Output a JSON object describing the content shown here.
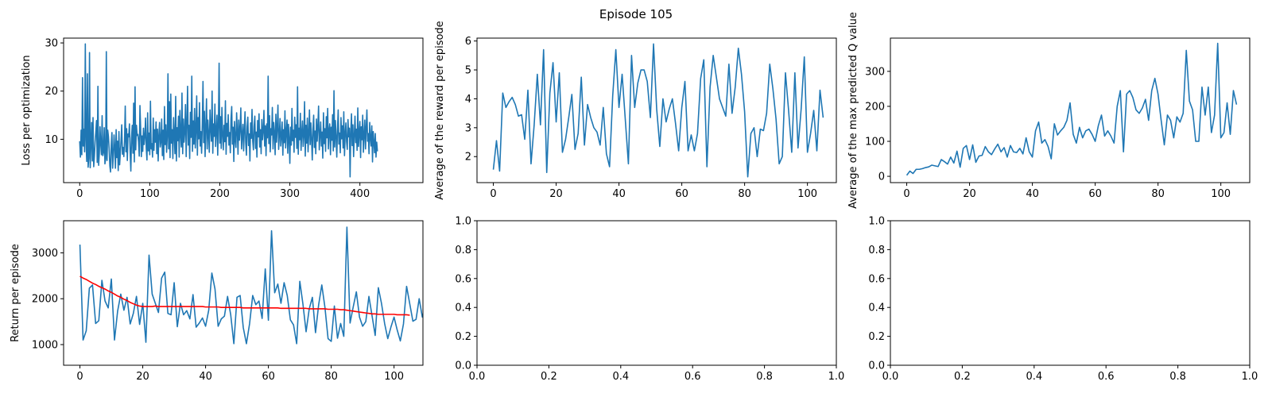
{
  "figure": {
    "title": "Episode 105"
  },
  "chart_data": [
    {
      "type": "line",
      "id": "loss",
      "ylabel": "Loss per optimization",
      "xlim": [
        -23,
        490
      ],
      "ylim": [
        1,
        31
      ],
      "xticks": [
        0,
        100,
        200,
        300,
        400
      ],
      "yticks": [
        10,
        20,
        30
      ],
      "series": [
        {
          "color": "#1f77b4",
          "values": [
            9.6,
            6.3,
            11.9,
            6.8,
            22.8,
            8.6,
            12.1,
            7.4,
            29.8,
            9.9,
            5.4,
            23.6,
            4.2,
            6.1,
            28.0,
            4.1,
            8.9,
            13.5,
            5.5,
            14.5,
            4.3,
            6.6,
            9.5,
            11.5,
            13.9,
            5.2,
            21.0,
            4.6,
            7.1,
            12.6,
            9.0,
            6.8,
            14.9,
            6.6,
            7.3,
            12.4,
            4.9,
            6.0,
            28.2,
            5.6,
            11.9,
            10.6,
            8.1,
            4.5,
            3.2,
            8.7,
            11.4,
            4.0,
            6.6,
            10.9,
            8.3,
            4.0,
            12.0,
            6.2,
            9.6,
            3.5,
            11.6,
            4.7,
            7.2,
            9.7,
            13.0,
            6.9,
            8.3,
            6.4,
            9.6,
            16.9,
            7.4,
            12.2,
            5.6,
            11.1,
            10.5,
            13.2,
            7.3,
            3.4,
            10.4,
            12.9,
            7.1,
            17.5,
            5.3,
            20.9,
            7.8,
            12.9,
            10.8,
            11.0,
            9.5,
            6.5,
            17.0,
            12.2,
            6.4,
            10.7,
            7.5,
            12.3,
            8.9,
            10.6,
            14.4,
            8.2,
            5.7,
            15.5,
            7.6,
            11.3,
            6.8,
            17.9,
            8.0,
            9.1,
            6.3,
            14.4,
            7.7,
            12.0,
            9.4,
            13.6,
            7.0,
            12.1,
            5.5,
            10.8,
            13.5,
            8.4,
            9.5,
            14.2,
            6.6,
            11.9,
            5.8,
            16.8,
            8.9,
            13.0,
            7.3,
            10.5,
            23.6,
            8.0,
            17.8,
            6.2,
            19.4,
            9.2,
            12.0,
            6.0,
            14.5,
            10.8,
            7.0,
            18.9,
            5.5,
            12.4,
            9.7,
            14.8,
            6.3,
            16.0,
            11.0,
            8.4,
            19.6,
            7.0,
            14.2,
            9.4,
            11.6,
            17.2,
            6.4,
            13.3,
            21.0,
            8.8,
            12.9,
            6.0,
            15.6,
            10.4,
            23.1,
            7.5,
            13.8,
            9.0,
            16.4,
            8.2,
            12.1,
            19.0,
            6.7,
            14.5,
            10.1,
            17.6,
            8.6,
            11.6,
            7.1,
            13.0,
            22.0,
            9.3,
            15.8,
            6.4,
            12.5,
            18.4,
            8.0,
            14.0,
            10.9,
            7.3,
            16.1,
            12.3,
            9.6,
            20.0,
            7.1,
            13.2,
            10.6,
            17.3,
            8.5,
            11.8,
            15.0,
            6.7,
            12.7,
            25.8,
            9.2,
            14.7,
            8.1,
            16.6,
            11.1,
            7.8,
            12.9,
            9.5,
            18.0,
            6.9,
            13.3,
            10.6,
            15.1,
            8.8,
            11.4,
            7.2,
            14.2,
            16.8,
            9.0,
            12.5,
            5.4,
            13.7,
            10.0,
            8.3,
            15.5,
            11.7,
            6.9,
            14.0,
            9.8,
            12.1,
            16.5,
            8.0,
            10.7,
            13.1,
            7.6,
            11.9,
            15.7,
            9.3,
            6.7,
            12.6,
            14.6,
            8.7,
            11.1,
            5.5,
            13.4,
            10.2,
            16.2,
            9.6,
            7.8,
            12.7,
            14.8,
            8.1,
            11.5,
            6.3,
            13.9,
            10.5,
            15.3,
            8.4,
            12.0,
            7.0,
            14.1,
            9.9,
            11.7,
            16.0,
            8.6,
            12.8,
            6.6,
            13.2,
            10.3,
            23.1,
            9.1,
            14.9,
            7.4,
            12.2,
            10.9,
            16.6,
            8.0,
            13.5,
            11.3,
            6.8,
            15.2,
            9.4,
            12.4,
            17.1,
            7.9,
            11.0,
            14.3,
            8.6,
            10.6,
            13.6,
            6.7,
            12.0,
            9.3,
            15.9,
            8.2,
            11.6,
            14.0,
            7.1,
            13.1,
            10.1,
            5.0,
            12.5,
            8.8,
            16.4,
            9.7,
            11.9,
            7.3,
            14.6,
            10.4,
            13.0,
            8.1,
            20.9,
            6.9,
            12.3,
            9.9,
            15.4,
            7.7,
            11.4,
            13.8,
            8.5,
            10.8,
            17.8,
            6.5,
            12.9,
            9.2,
            14.4,
            7.4,
            11.2,
            16.1,
            8.9,
            13.4,
            10.0,
            5.7,
            12.1,
            15.0,
            8.3,
            11.7,
            7.0,
            14.2,
            9.6,
            12.6,
            16.9,
            7.8,
            10.9,
            13.6,
            8.6,
            11.5,
            6.1,
            15.5,
            9.1,
            12.2,
            7.5,
            14.7,
            10.3,
            16.4,
            8.0,
            11.8,
            13.2,
            6.8,
            12.5,
            9.8,
            15.1,
            7.6,
            20.1,
            8.4,
            13.9,
            10.7,
            6.3,
            12.0,
            16.1,
            9.0,
            11.3,
            7.2,
            14.5,
            10.1,
            12.8,
            8.2,
            15.7,
            6.6,
            11.0,
            13.4,
            9.5,
            7.9,
            14.1,
            10.5,
            12.3,
            2.2,
            11.6,
            15.3,
            8.7,
            13.0,
            6.4,
            10.8,
            14.8,
            9.3,
            12.1,
            7.7,
            16.5,
            8.5,
            11.4,
            13.7,
            6.2,
            12.6,
            9.9,
            15.0,
            7.3,
            10.9,
            14.0,
            8.0,
            12.4,
            16.1,
            9.6,
            11.2,
            7.0,
            13.5,
            10.2,
            8.6,
            12.8,
            5.3,
            11.6,
            9.5,
            7.2,
            11.2,
            6.3,
            9.4,
            7.5
          ]
        }
      ]
    },
    {
      "type": "line",
      "id": "reward",
      "ylabel": "Average of the reward per episode",
      "xlim": [
        -5.2,
        109.2
      ],
      "ylim": [
        1.1,
        6.1
      ],
      "xticks": [
        0,
        20,
        40,
        60,
        80,
        100
      ],
      "yticks": [
        2,
        3,
        4,
        5,
        6
      ],
      "series": [
        {
          "color": "#1f77b4",
          "values": [
            1.55,
            2.55,
            1.5,
            4.2,
            3.7,
            3.9,
            4.05,
            3.8,
            3.4,
            3.45,
            2.6,
            4.3,
            1.75,
            3.1,
            4.85,
            3.1,
            5.7,
            1.45,
            4.2,
            5.25,
            3.2,
            4.9,
            2.15,
            2.6,
            3.35,
            4.15,
            2.25,
            2.8,
            4.75,
            2.4,
            3.8,
            3.35,
            3.0,
            2.85,
            2.4,
            3.7,
            2.1,
            1.65,
            4.1,
            5.7,
            3.7,
            4.85,
            3.3,
            1.75,
            5.5,
            3.7,
            4.55,
            5.0,
            5.0,
            4.6,
            3.35,
            5.9,
            3.65,
            2.35,
            4.0,
            3.2,
            3.65,
            4.0,
            3.15,
            2.2,
            3.7,
            4.6,
            2.2,
            2.75,
            2.2,
            2.8,
            4.7,
            5.35,
            1.65,
            4.4,
            5.5,
            4.75,
            4.0,
            3.7,
            3.4,
            5.2,
            3.5,
            4.4,
            5.75,
            4.85,
            3.55,
            1.3,
            2.8,
            3.0,
            2.0,
            2.95,
            2.9,
            3.5,
            5.2,
            4.35,
            3.3,
            1.75,
            2.0,
            4.9,
            3.6,
            2.15,
            4.9,
            2.3,
            3.65,
            5.45,
            2.15,
            2.8,
            3.6,
            2.2,
            4.3,
            3.35
          ]
        }
      ]
    },
    {
      "type": "line",
      "id": "maxq",
      "ylabel": "Average of the max predicted Q value",
      "xlim": [
        -5.2,
        109.2
      ],
      "ylim": [
        -18,
        395
      ],
      "xticks": [
        0,
        20,
        40,
        60,
        80,
        100
      ],
      "yticks": [
        0,
        100,
        200,
        300
      ],
      "series": [
        {
          "color": "#1f77b4",
          "values": [
            3,
            15,
            8,
            20,
            20,
            22,
            25,
            27,
            32,
            30,
            28,
            48,
            42,
            35,
            55,
            38,
            72,
            26,
            80,
            88,
            48,
            90,
            40,
            58,
            60,
            85,
            70,
            62,
            78,
            92,
            70,
            82,
            55,
            88,
            70,
            68,
            80,
            64,
            110,
            70,
            55,
            130,
            155,
            95,
            105,
            85,
            50,
            150,
            118,
            130,
            140,
            160,
            210,
            120,
            95,
            140,
            110,
            130,
            135,
            120,
            100,
            145,
            175,
            115,
            130,
            115,
            95,
            200,
            245,
            70,
            235,
            245,
            225,
            190,
            180,
            195,
            220,
            160,
            245,
            280,
            235,
            160,
            90,
            175,
            160,
            110,
            170,
            155,
            180,
            360,
            215,
            190,
            100,
            100,
            255,
            175,
            255,
            125,
            175,
            380,
            110,
            125,
            210,
            120,
            245,
            205
          ]
        }
      ]
    },
    {
      "type": "line",
      "id": "return",
      "ylabel": "Return per episode",
      "xlim": [
        -5.2,
        109.2
      ],
      "ylim": [
        550,
        3700
      ],
      "xticks": [
        0,
        20,
        40,
        60,
        80,
        100
      ],
      "yticks": [
        1000,
        2000,
        3000
      ],
      "series": [
        {
          "color": "#1f77b4",
          "values": [
            3180,
            1100,
            1300,
            2230,
            2300,
            1460,
            1520,
            2400,
            1950,
            1800,
            2430,
            1100,
            1730,
            2100,
            1750,
            2030,
            1450,
            1680,
            2050,
            1440,
            1900,
            1050,
            2950,
            2100,
            1900,
            1700,
            2450,
            2580,
            1680,
            1650,
            2350,
            1390,
            1900,
            1650,
            1740,
            1560,
            2090,
            1380,
            1470,
            1580,
            1400,
            1750,
            2560,
            2210,
            1400,
            1560,
            1620,
            2050,
            1650,
            1020,
            2030,
            2070,
            1370,
            1020,
            1450,
            2070,
            1870,
            1950,
            1570,
            2650,
            1530,
            3480,
            2130,
            2320,
            1900,
            2350,
            2070,
            1540,
            1430,
            1020,
            2380,
            1880,
            1280,
            1780,
            2030,
            1260,
            1870,
            2300,
            1810,
            1130,
            1070,
            1840,
            1140,
            1460,
            1180,
            3560,
            1470,
            1820,
            2150,
            1600,
            1400,
            1500,
            2050,
            1630,
            1200,
            2240,
            1900,
            1460,
            1130,
            1380,
            1600,
            1320,
            1080,
            1450,
            2270,
            1890,
            1510,
            1550,
            2000,
            1600,
            1880,
            1650
          ]
        },
        {
          "color": "#ff0000",
          "values": [
            2490,
            2450,
            2420,
            2380,
            2340,
            2310,
            2270,
            2240,
            2210,
            2170,
            2140,
            2100,
            2060,
            2030,
            1990,
            1960,
            1920,
            1890,
            1860,
            1840,
            1830,
            1830,
            1830,
            1830,
            1840,
            1830,
            1830,
            1830,
            1830,
            1830,
            1830,
            1830,
            1830,
            1830,
            1830,
            1830,
            1830,
            1830,
            1830,
            1830,
            1820,
            1820,
            1820,
            1820,
            1820,
            1810,
            1810,
            1810,
            1810,
            1810,
            1810,
            1810,
            1800,
            1800,
            1800,
            1800,
            1800,
            1800,
            1800,
            1800,
            1800,
            1800,
            1800,
            1800,
            1790,
            1790,
            1790,
            1790,
            1790,
            1790,
            1790,
            1790,
            1790,
            1780,
            1780,
            1780,
            1780,
            1780,
            1780,
            1770,
            1770,
            1770,
            1770,
            1760,
            1760,
            1750,
            1740,
            1730,
            1720,
            1710,
            1700,
            1690,
            1680,
            1670,
            1670,
            1660,
            1660,
            1660,
            1660,
            1660,
            1660,
            1650,
            1650,
            1650,
            1650,
            1640
          ]
        }
      ]
    },
    {
      "type": "line",
      "id": "empty1",
      "ylabel": "",
      "xlim": [
        0,
        1
      ],
      "ylim": [
        0,
        1
      ],
      "xticks": [
        0.0,
        0.2,
        0.4,
        0.6,
        0.8,
        1.0
      ],
      "yticks": [
        0.0,
        0.2,
        0.4,
        0.6,
        0.8,
        1.0
      ],
      "tick_format": "fixed1",
      "series": []
    },
    {
      "type": "line",
      "id": "empty2",
      "ylabel": "",
      "xlim": [
        0,
        1
      ],
      "ylim": [
        0,
        1
      ],
      "xticks": [
        0.0,
        0.2,
        0.4,
        0.6,
        0.8,
        1.0
      ],
      "yticks": [
        0.0,
        0.2,
        0.4,
        0.6,
        0.8,
        1.0
      ],
      "tick_format": "fixed1",
      "series": []
    }
  ]
}
